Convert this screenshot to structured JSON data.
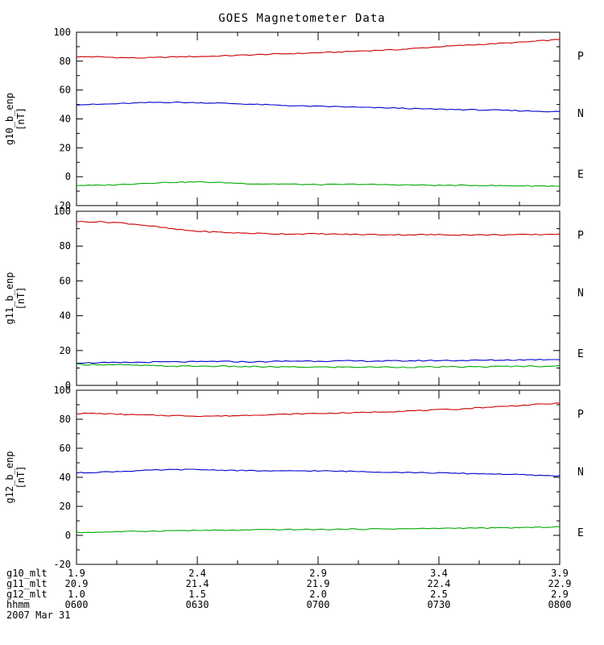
{
  "chart_data": {
    "type": "line",
    "title": "GOES Magnetometer Data",
    "date_label": "2007 Mar 31",
    "colors": {
      "P": "#cc0000",
      "N": "#00aa00",
      "E": "#0000cc",
      "axis": "#000000",
      "background": "#ffffff"
    },
    "x": {
      "minutes": [
        0,
        5,
        10,
        15,
        20,
        25,
        30,
        35,
        40,
        45,
        50,
        55,
        60,
        65,
        70,
        75,
        80,
        85,
        90,
        95,
        100,
        105,
        110,
        115,
        120
      ],
      "tick_minutes": [
        0,
        30,
        60,
        90,
        120
      ],
      "minor_step_minutes": 10,
      "range": [
        0,
        120
      ]
    },
    "bottom_rows": [
      {
        "label": "g10_mlt",
        "values": [
          "1.9",
          "2.4",
          "2.9",
          "3.4",
          "3.9"
        ]
      },
      {
        "label": "g11_mlt",
        "values": [
          "20.9",
          "21.4",
          "21.9",
          "22.4",
          "22.9"
        ]
      },
      {
        "label": "g12_mlt",
        "values": [
          "1.0",
          "1.5",
          "2.0",
          "2.5",
          "2.9"
        ]
      },
      {
        "label": "hhmm",
        "values": [
          "0600",
          "0630",
          "0700",
          "0730",
          "0800"
        ]
      }
    ],
    "panels": [
      {
        "ylabel": "g10_b_enp",
        "units": "[nT]",
        "ylim": [
          -20,
          100
        ],
        "yticks": [
          -20,
          0,
          20,
          40,
          60,
          80,
          100
        ],
        "minor_step": 10,
        "right_labels": [
          "P",
          "N",
          "E"
        ],
        "series": [
          {
            "name": "P",
            "values": [
              83,
              83,
              82.5,
              82.2,
              82.5,
              83,
              83.2,
              83.5,
              84,
              84.5,
              85,
              85.3,
              85.8,
              86.3,
              87,
              87.5,
              88,
              89,
              90,
              90.8,
              91.5,
              92.3,
              93,
              94,
              95
            ]
          },
          {
            "name": "E",
            "values": [
              50,
              50,
              50.5,
              51,
              51.5,
              51.5,
              51.2,
              51,
              50.5,
              50,
              49.5,
              49,
              48.7,
              48.5,
              48,
              47.7,
              47.5,
              47,
              46.7,
              46.5,
              46.2,
              46,
              45.7,
              45.3,
              45
            ]
          },
          {
            "name": "N",
            "values": [
              -6,
              -6,
              -5.5,
              -4.8,
              -4.2,
              -3.8,
              -3.6,
              -4,
              -4.5,
              -5,
              -5,
              -5.3,
              -5.5,
              -5.4,
              -5.2,
              -5.5,
              -5.6,
              -5.8,
              -6,
              -6,
              -6,
              -6.2,
              -6.3,
              -6.4,
              -6.5
            ]
          }
        ]
      },
      {
        "ylabel": "g11_b_enp",
        "units": "[nT]",
        "ylim": [
          0,
          100
        ],
        "yticks": [
          0,
          20,
          40,
          60,
          80,
          100
        ],
        "minor_step": 10,
        "right_labels": [
          "P",
          "N",
          "E"
        ],
        "series": [
          {
            "name": "P",
            "values": [
              94,
              94,
              93.5,
              92.5,
              91,
              89.5,
              88.5,
              88,
              87.5,
              87.3,
              87,
              87,
              87,
              86.8,
              86.6,
              86.6,
              86.5,
              86.5,
              86.5,
              86.5,
              86.4,
              86.5,
              86.5,
              86.6,
              87
            ]
          },
          {
            "name": "E",
            "values": [
              13,
              13,
              13,
              13.2,
              13.4,
              13.5,
              13.5,
              13.8,
              13.6,
              13.5,
              13.8,
              14,
              14,
              14,
              14,
              14,
              14,
              14.2,
              14.3,
              14.3,
              14.4,
              14.5,
              14.7,
              14.8,
              15
            ]
          },
          {
            "name": "N",
            "values": [
              12,
              12,
              11.8,
              11.5,
              11.2,
              11,
              11,
              11,
              10.8,
              10.7,
              10.6,
              10.5,
              10.5,
              10.5,
              10.5,
              10.5,
              10.5,
              10.5,
              10.6,
              10.6,
              10.7,
              10.8,
              11,
              11,
              11.2
            ]
          }
        ]
      },
      {
        "ylabel": "g12_b_enp",
        "units": "[nT]",
        "ylim": [
          -20,
          100
        ],
        "yticks": [
          -20,
          0,
          20,
          40,
          60,
          80,
          100
        ],
        "minor_step": 10,
        "right_labels": [
          "P",
          "N",
          "E"
        ],
        "series": [
          {
            "name": "P",
            "values": [
              84,
              84,
              83.5,
              83,
              82.7,
              82.5,
              82.2,
              82.2,
              82.5,
              83,
              83.3,
              83.7,
              84,
              84.3,
              84.5,
              85,
              85.5,
              86,
              86.5,
              87,
              88,
              88.7,
              89.5,
              90.3,
              91
            ]
          },
          {
            "name": "E",
            "values": [
              43,
              43.5,
              44,
              44.5,
              45,
              45.3,
              45.3,
              45,
              44.7,
              44.5,
              44.2,
              44.5,
              44.4,
              44.2,
              44,
              43.7,
              43.5,
              43.2,
              43,
              42.7,
              42.5,
              42.2,
              41.8,
              41.3,
              41
            ]
          },
          {
            "name": "N",
            "values": [
              2,
              2.2,
              2.5,
              2.8,
              3,
              3.3,
              3.4,
              3.5,
              3.5,
              3.8,
              4,
              4,
              4,
              4.1,
              4.3,
              4.4,
              4.5,
              4.6,
              4.8,
              5,
              5,
              5.1,
              5.3,
              5.5,
              6
            ]
          }
        ]
      }
    ]
  }
}
